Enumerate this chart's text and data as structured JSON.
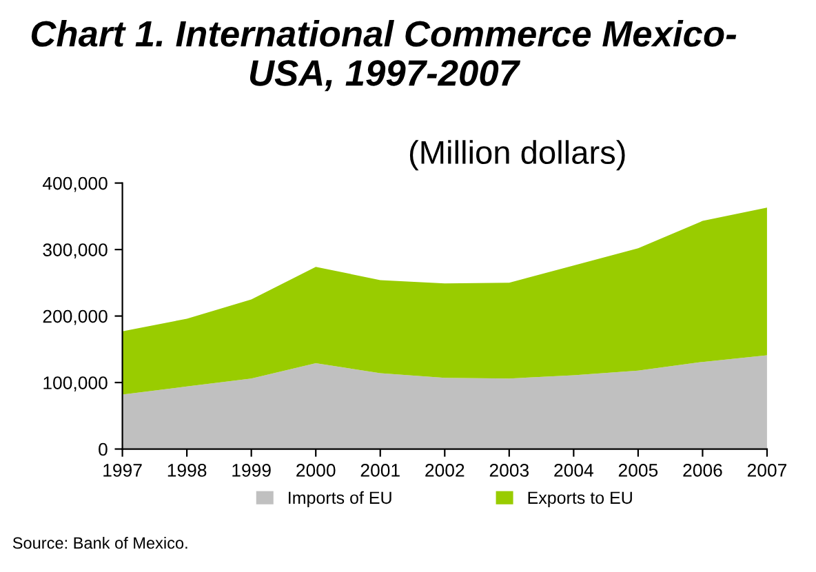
{
  "chart_data": {
    "type": "area",
    "title": "Chart 1. International Commerce Mexico- USA, 1997-2007",
    "subtitle": "(Million dollars)",
    "categories": [
      "1997",
      "1998",
      "1999",
      "2000",
      "2001",
      "2002",
      "2003",
      "2004",
      "2005",
      "2006",
      "2007"
    ],
    "series": [
      {
        "name": "Imports of EU",
        "color": "#c0c0c0",
        "values": [
          82000,
          94000,
          106000,
          129000,
          114000,
          107000,
          106000,
          111000,
          118000,
          131000,
          141000
        ]
      },
      {
        "name": "Exports to EU",
        "color": "#99cc00",
        "values": [
          95000,
          102000,
          119000,
          145000,
          140000,
          142000,
          144000,
          165000,
          184000,
          212000,
          222000
        ]
      }
    ],
    "stacked": true,
    "ylim": [
      0,
      400000
    ],
    "yticks": [
      {
        "value": 0,
        "label": "0"
      },
      {
        "value": 100000,
        "label": "100,000"
      },
      {
        "value": 200000,
        "label": "200,000"
      },
      {
        "value": 300000,
        "label": "300,000"
      },
      {
        "value": 400000,
        "label": "400,000"
      }
    ],
    "grid": false,
    "legend": "bottom",
    "annotations": [
      "Source: Bank of Mexico."
    ]
  }
}
